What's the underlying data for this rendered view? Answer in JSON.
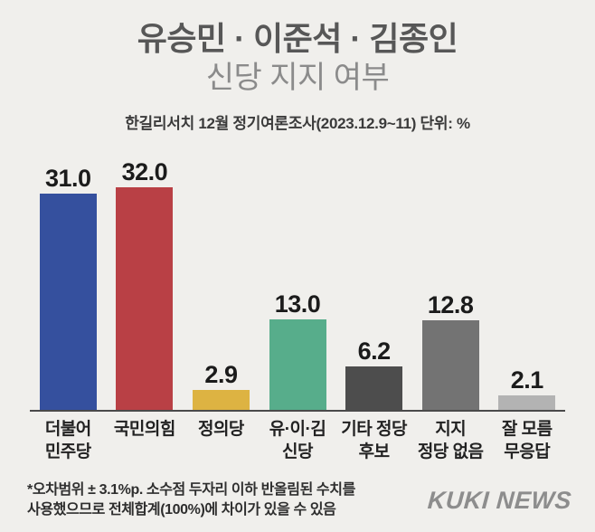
{
  "header": {
    "title_line1": "유승민 · 이준석 · 김종인",
    "title_line2": "신당 지지 여부",
    "source": "한길리서치 12월 정기여론조사(2023.12.9~11) 단위: %"
  },
  "chart_data": {
    "type": "bar",
    "title": "유승민 · 이준석 · 김종인 신당 지지 여부",
    "subtitle": "한길리서치 12월 정기여론조사(2023.12.9~11)",
    "unit": "%",
    "categories": [
      "더불어 민주당",
      "국민의힘",
      "정의당",
      "유·이·김 신당",
      "기타 정당 후보",
      "지지 정당 없음",
      "잘 모름 무응답"
    ],
    "category_lines": [
      [
        "더불어",
        "민주당"
      ],
      [
        "국민의힘"
      ],
      [
        "정의당"
      ],
      [
        "유·이·김",
        "신당"
      ],
      [
        "기타 정당",
        "후보"
      ],
      [
        "지지",
        "정당 없음"
      ],
      [
        "잘 모름",
        "무응답"
      ]
    ],
    "values": [
      31.0,
      32.0,
      2.9,
      13.0,
      6.2,
      12.8,
      2.1
    ],
    "value_labels": [
      "31.0",
      "32.0",
      "2.9",
      "13.0",
      "6.2",
      "12.8",
      "2.1"
    ],
    "bar_colors": [
      "#35509e",
      "#b94045",
      "#ddb342",
      "#57ad8b",
      "#4d4d4d",
      "#737373",
      "#b3b3b3"
    ],
    "ylim": [
      0,
      35
    ],
    "grid": false,
    "legend": "none",
    "data_label_position": "above bars"
  },
  "footer": {
    "footnote": "*오차범위 ± 3.1%p. 소수점 두자리 이하 반올림된 수치를\n 사용했으므로 전체합계(100%)에 차이가 있을 수 있음",
    "logo": "KUKI NEWS"
  },
  "colors": {
    "background": "#f0efec",
    "axis_line": "#4a4a4a",
    "title": "#575757",
    "subtitle": "#8b8b8b",
    "value_label": "#1b1b1b",
    "category_label": "#222222",
    "footnote_text": "#2e2e2e",
    "logo_text": "#8d8d8d"
  }
}
